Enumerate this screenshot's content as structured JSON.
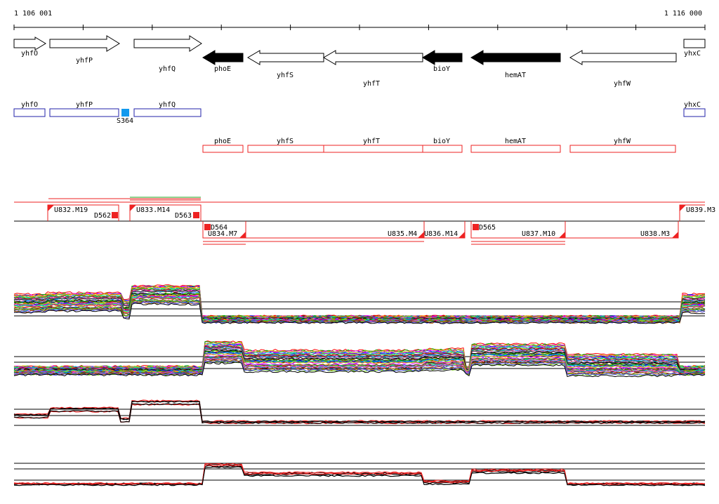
{
  "ruler": {
    "start_label": "1 106 001",
    "end_label": "1 116 000"
  },
  "genes_top": [
    {
      "name": "yhfO",
      "dir": "right",
      "fill": "white"
    },
    {
      "name": "yhfP",
      "dir": "right",
      "fill": "white"
    },
    {
      "name": "yhfQ",
      "dir": "right",
      "fill": "white"
    },
    {
      "name": "phoE",
      "dir": "left",
      "fill": "black"
    },
    {
      "name": "yhfS",
      "dir": "left",
      "fill": "white"
    },
    {
      "name": "yhfT",
      "dir": "left",
      "fill": "white"
    },
    {
      "name": "bioY",
      "dir": "left",
      "fill": "black"
    },
    {
      "name": "hemAT",
      "dir": "left",
      "fill": "black"
    },
    {
      "name": "yhfW",
      "dir": "left",
      "fill": "white"
    },
    {
      "name": "yhxC",
      "dir": "right",
      "fill": "white"
    }
  ],
  "operons_blue": [
    "yhfO",
    "yhfP",
    "yhfQ",
    "yhxC"
  ],
  "marker_blue": "S364",
  "operons_red": [
    "phoE",
    "yhfS",
    "yhfT",
    "bioY",
    "hemAT",
    "yhfW"
  ],
  "segments_upper": [
    "U832.M19",
    "D562",
    "U833.M14",
    "D563",
    "U839.M3"
  ],
  "segments_lower": [
    "D564",
    "U834.M7",
    "U835.M4",
    "U836.M14",
    "D565",
    "U837.M10",
    "U838.M3"
  ],
  "colors": {
    "blue_track": "#2222aa",
    "red_track": "#ee2222",
    "marker": "#1199ee",
    "black": "#000000"
  }
}
